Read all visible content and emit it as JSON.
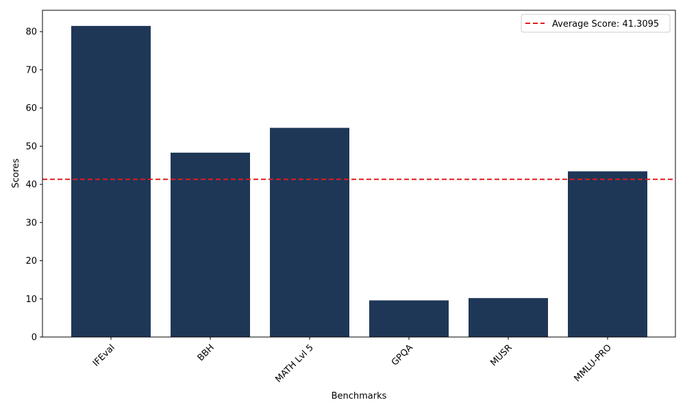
{
  "chart_data": {
    "type": "bar",
    "categories": [
      "IFEval",
      "BBH",
      "MATH Lvl 5",
      "GPQA",
      "MUSR",
      "MMLU-PRO"
    ],
    "values": [
      81.5,
      48.3,
      54.8,
      9.6,
      10.2,
      43.4
    ],
    "xlabel": "Benchmarks",
    "ylabel": "Scores",
    "ylim": [
      0,
      85.6
    ],
    "yticks": [
      0,
      10,
      20,
      30,
      40,
      50,
      60,
      70,
      80
    ],
    "bar_color": "#1f3757",
    "reference_line": {
      "value": 41.3095,
      "label": "Average Score: 41.3095",
      "color": "#e31a1c",
      "style": "dashed"
    },
    "legend_position": "top-right",
    "grid": false
  }
}
